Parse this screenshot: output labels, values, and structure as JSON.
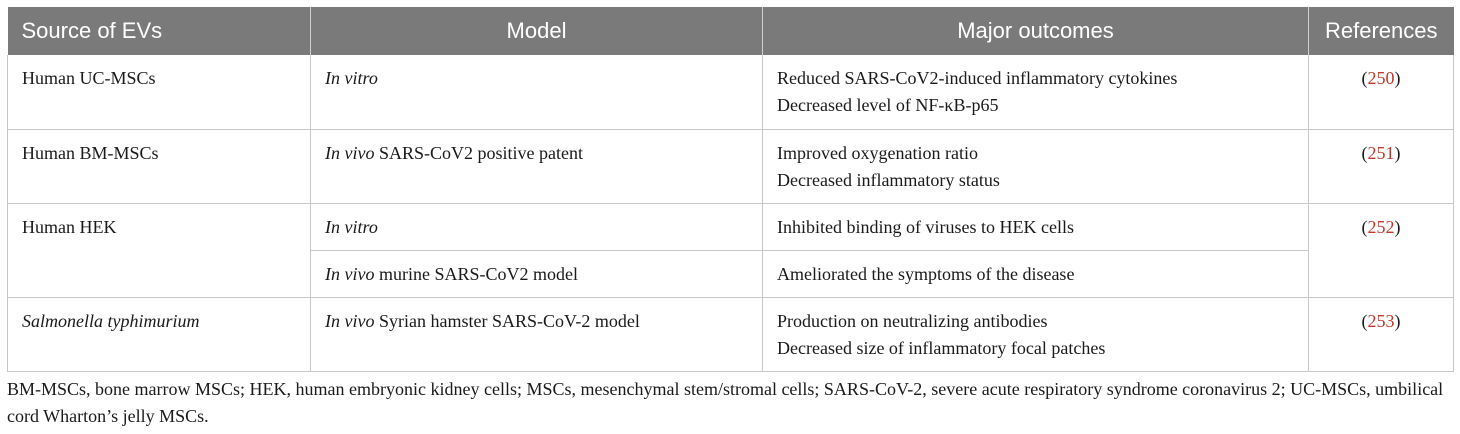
{
  "table": {
    "headers": {
      "source": "Source of EVs",
      "model": "Model",
      "outcomes": "Major outcomes",
      "references": "References"
    },
    "rows": [
      {
        "source": "Human UC-MSCs",
        "model_italic": "In vitro",
        "model_rest": "",
        "outcomes": [
          "Reduced SARS-CoV2-induced inflammatory cytokines",
          "Decreased level of NF-κB-p65"
        ],
        "ref": "250"
      },
      {
        "source": "Human BM-MSCs",
        "model_italic": "In vivo",
        "model_rest": " SARS-CoV2 positive patent",
        "outcomes": [
          "Improved oxygenation ratio",
          "Decreased inflammatory status"
        ],
        "ref": "251"
      },
      {
        "source": "Human HEK",
        "model_italic": "In vitro",
        "model_rest": "",
        "outcomes": [
          "Inhibited binding of viruses to HEK cells"
        ],
        "ref": "252"
      },
      {
        "source": "",
        "model_italic": "In vivo",
        "model_rest": " murine SARS-CoV2 model",
        "outcomes": [
          "Ameliorated the symptoms of the disease"
        ],
        "ref": ""
      },
      {
        "source": "Salmonella typhimurium",
        "model_italic": "In vivo",
        "model_rest": " Syrian hamster SARS-CoV-2 model",
        "outcomes": [
          "Production on neutralizing antibodies",
          "Decreased size of inflammatory focal patches"
        ],
        "ref": "253"
      }
    ]
  },
  "footnote": "BM-MSCs, bone marrow MSCs; HEK, human embryonic kidney cells; MSCs, mesenchymal stem/stromal cells; SARS-CoV-2, severe acute respiratory syndrome coronavirus 2; UC-MSCs, umbilical cord Wharton’s jelly MSCs.",
  "colors": {
    "header_bg": "#7a7a7a",
    "header_text": "#ffffff",
    "ref_link": "#c0392b",
    "grid": "#c8c8c8"
  },
  "chart_data": {
    "type": "table",
    "columns": [
      "Source of EVs",
      "Model",
      "Major outcomes",
      "References"
    ],
    "rows": [
      [
        "Human UC-MSCs",
        "In vitro",
        "Reduced SARS-CoV2-induced inflammatory cytokines; Decreased level of NF-κB-p65",
        "(250)"
      ],
      [
        "Human BM-MSCs",
        "In vivo SARS-CoV2 positive patent",
        "Improved oxygenation ratio; Decreased inflammatory status",
        "(251)"
      ],
      [
        "Human HEK",
        "In vitro",
        "Inhibited binding of viruses to HEK cells",
        "(252)"
      ],
      [
        "Human HEK",
        "In vivo murine SARS-CoV2 model",
        "Ameliorated the symptoms of the disease",
        "(252)"
      ],
      [
        "Salmonella typhimurium",
        "In vivo Syrian hamster SARS-CoV-2 model",
        "Production on neutralizing antibodies; Decreased size of inflammatory focal patches",
        "(253)"
      ]
    ]
  }
}
